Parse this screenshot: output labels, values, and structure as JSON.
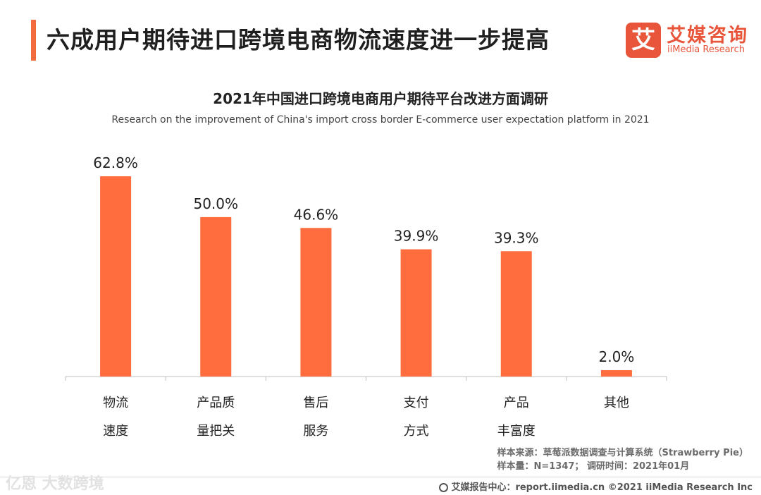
{
  "header": {
    "title": "六成用户期待进口跨境电商物流速度进一步提高"
  },
  "brand": {
    "mark": "艾",
    "name_cn": "艾媒咨询",
    "name_en": "iiMedia Research"
  },
  "chart_data": {
    "type": "bar",
    "title": "2021年中国进口跨境电商用户期待平台改进方面调研",
    "subtitle": "Research on the improvement of China's import cross border E-commerce user expectation platform in 2021",
    "categories": [
      [
        "物流",
        "速度"
      ],
      [
        "产品质",
        "量把关"
      ],
      [
        "售后",
        "服务"
      ],
      [
        "支付",
        "方式"
      ],
      [
        "产品",
        "丰富度"
      ],
      [
        "其他"
      ]
    ],
    "values": [
      62.8,
      50.0,
      46.6,
      39.9,
      39.3,
      2.0
    ],
    "value_labels": [
      "62.8%",
      "50.0%",
      "46.6%",
      "39.9%",
      "39.3%",
      "2.0%"
    ],
    "ylim": [
      0,
      62.8
    ],
    "grid": false,
    "legend": "none",
    "bar_color": "#ff6d3f"
  },
  "source": {
    "line1": "样本来源：草莓派数据调查与计算系统（Strawberry Pie）",
    "line2": "样本量：N=1347； 调研时间：2021年01月"
  },
  "footer": {
    "text": "艾媒报告中心：report.iimedia.cn  ©2021  iiMedia Research  Inc"
  },
  "watermark": {
    "text": "亿恩 大数跨境"
  }
}
